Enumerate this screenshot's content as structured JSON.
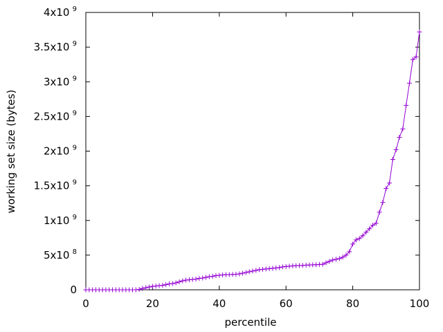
{
  "chart_data": {
    "type": "line",
    "xlabel": "percentile",
    "ylabel": "working set size (bytes)",
    "xlim": [
      0,
      100
    ],
    "ylim": [
      0,
      4000000000
    ],
    "x_ticks": [
      {
        "value": 0,
        "label": "0"
      },
      {
        "value": 20,
        "label": "20"
      },
      {
        "value": 40,
        "label": "40"
      },
      {
        "value": 60,
        "label": "60"
      },
      {
        "value": 80,
        "label": "80"
      },
      {
        "value": 100,
        "label": "100"
      }
    ],
    "y_ticks": [
      {
        "value": 0,
        "mantissa": "0",
        "exp": ""
      },
      {
        "value": 500000000,
        "mantissa": "5x10",
        "exp": "8"
      },
      {
        "value": 1000000000,
        "mantissa": "1x10",
        "exp": "9"
      },
      {
        "value": 1500000000,
        "mantissa": "1.5x10",
        "exp": "9"
      },
      {
        "value": 2000000000,
        "mantissa": "2x10",
        "exp": "9"
      },
      {
        "value": 2500000000,
        "mantissa": "2.5x10",
        "exp": "9"
      },
      {
        "value": 3000000000,
        "mantissa": "3x10",
        "exp": "9"
      },
      {
        "value": 3500000000,
        "mantissa": "3.5x10",
        "exp": "9"
      },
      {
        "value": 4000000000,
        "mantissa": "4x10",
        "exp": "9"
      }
    ],
    "grid": false,
    "legend": "none",
    "series": [
      {
        "color": "#9400d3",
        "marker": "plus",
        "points": [
          [
            0,
            0
          ],
          [
            1,
            0
          ],
          [
            2,
            0
          ],
          [
            3,
            0
          ],
          [
            4,
            0
          ],
          [
            5,
            0
          ],
          [
            6,
            0
          ],
          [
            7,
            0
          ],
          [
            8,
            0
          ],
          [
            9,
            0
          ],
          [
            10,
            0
          ],
          [
            11,
            0
          ],
          [
            12,
            0
          ],
          [
            13,
            0
          ],
          [
            14,
            0
          ],
          [
            15,
            0
          ],
          [
            16,
            5000000
          ],
          [
            17,
            20000000
          ],
          [
            18,
            30000000
          ],
          [
            19,
            40000000
          ],
          [
            20,
            50000000
          ],
          [
            21,
            55000000
          ],
          [
            22,
            60000000
          ],
          [
            23,
            65000000
          ],
          [
            24,
            75000000
          ],
          [
            25,
            85000000
          ],
          [
            26,
            90000000
          ],
          [
            27,
            100000000
          ],
          [
            28,
            115000000
          ],
          [
            29,
            130000000
          ],
          [
            30,
            140000000
          ],
          [
            31,
            145000000
          ],
          [
            32,
            150000000
          ],
          [
            33,
            155000000
          ],
          [
            34,
            165000000
          ],
          [
            35,
            170000000
          ],
          [
            36,
            180000000
          ],
          [
            37,
            190000000
          ],
          [
            38,
            195000000
          ],
          [
            39,
            205000000
          ],
          [
            40,
            210000000
          ],
          [
            41,
            215000000
          ],
          [
            42,
            218000000
          ],
          [
            43,
            220000000
          ],
          [
            44,
            222000000
          ],
          [
            45,
            225000000
          ],
          [
            46,
            230000000
          ],
          [
            47,
            240000000
          ],
          [
            48,
            250000000
          ],
          [
            49,
            260000000
          ],
          [
            50,
            270000000
          ],
          [
            51,
            280000000
          ],
          [
            52,
            290000000
          ],
          [
            53,
            295000000
          ],
          [
            54,
            300000000
          ],
          [
            55,
            305000000
          ],
          [
            56,
            310000000
          ],
          [
            57,
            315000000
          ],
          [
            58,
            320000000
          ],
          [
            59,
            330000000
          ],
          [
            60,
            335000000
          ],
          [
            61,
            340000000
          ],
          [
            62,
            345000000
          ],
          [
            63,
            348000000
          ],
          [
            64,
            350000000
          ],
          [
            65,
            352000000
          ],
          [
            66,
            355000000
          ],
          [
            67,
            358000000
          ],
          [
            68,
            360000000
          ],
          [
            69,
            362000000
          ],
          [
            70,
            365000000
          ],
          [
            71,
            368000000
          ],
          [
            72,
            390000000
          ],
          [
            73,
            410000000
          ],
          [
            74,
            430000000
          ],
          [
            75,
            440000000
          ],
          [
            76,
            450000000
          ],
          [
            77,
            470000000
          ],
          [
            78,
            500000000
          ],
          [
            79,
            550000000
          ],
          [
            80,
            660000000
          ],
          [
            81,
            720000000
          ],
          [
            82,
            740000000
          ],
          [
            83,
            780000000
          ],
          [
            84,
            830000000
          ],
          [
            85,
            880000000
          ],
          [
            86,
            930000000
          ],
          [
            87,
            960000000
          ],
          [
            88,
            1120000000
          ],
          [
            89,
            1260000000
          ],
          [
            90,
            1460000000
          ],
          [
            91,
            1540000000
          ],
          [
            92,
            1880000000
          ],
          [
            93,
            2020000000
          ],
          [
            94,
            2200000000
          ],
          [
            95,
            2320000000
          ],
          [
            96,
            2660000000
          ],
          [
            97,
            2980000000
          ],
          [
            98,
            3320000000
          ],
          [
            99,
            3360000000
          ],
          [
            100,
            3720000000
          ]
        ]
      }
    ]
  }
}
